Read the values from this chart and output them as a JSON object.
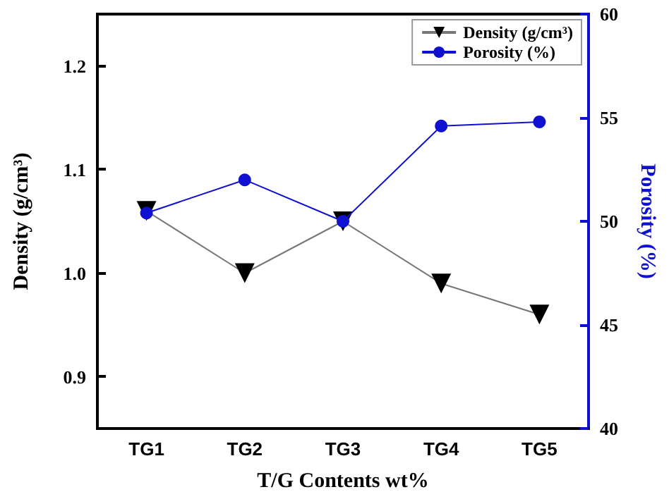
{
  "chart_data": {
    "type": "line",
    "xlabel": "T/G Contents wt%",
    "ylabel": "Density (g/cm³)",
    "y2label": "Porosity (%)",
    "categories": [
      "TG1",
      "TG2",
      "TG3",
      "TG4",
      "TG5"
    ],
    "series": [
      {
        "name": "Density (g/cm³)",
        "color": "#000000",
        "marker": "triangle",
        "values": [
          1.06,
          1.0,
          1.05,
          0.99,
          0.96
        ]
      },
      {
        "name": "Porosity (%)",
        "color": "#1010d0",
        "marker": "circle",
        "axis": "y2",
        "values": [
          50.4,
          52.0,
          50.0,
          54.6,
          54.8
        ]
      }
    ],
    "ylim": [
      0.85,
      1.25
    ],
    "yticks": [
      0.9,
      {
        "value": 1,
        "label": "1.0"
      },
      1.1,
      1.2
    ],
    "y2lim": [
      40,
      60
    ],
    "y2ticks": [
      40,
      45,
      50,
      55,
      60
    ],
    "grid": false,
    "legend": "top right"
  }
}
